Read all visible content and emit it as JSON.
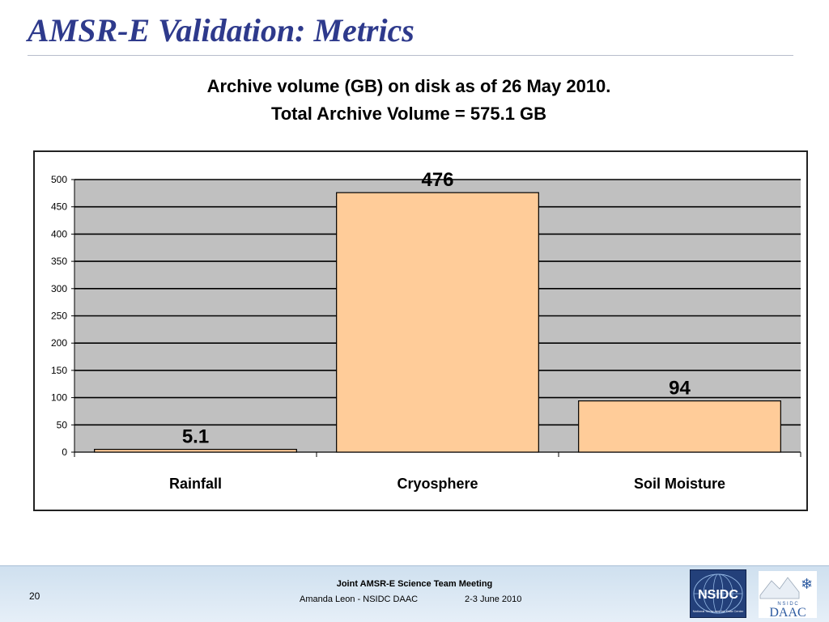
{
  "slide": {
    "title": "AMSR-E Validation: Metrics",
    "subtitle_line1": "Archive volume (GB) on disk as of 26 May 2010.",
    "subtitle_line2": "Total Archive Volume = 575.1 GB"
  },
  "chart_data": {
    "type": "bar",
    "title": "",
    "xlabel": "",
    "ylabel": "",
    "categories": [
      "Rainfall",
      "Cryosphere",
      "Soil Moisture"
    ],
    "values": [
      5.1,
      476,
      94
    ],
    "data_labels": [
      "5.1",
      "476",
      "94"
    ],
    "ylim": [
      0,
      500
    ],
    "yticks": [
      0,
      50,
      100,
      150,
      200,
      250,
      300,
      350,
      400,
      450,
      500
    ],
    "grid": true,
    "legend": "none",
    "colors": {
      "bar_fill": "#ffcc99",
      "bar_stroke": "#000000",
      "plot_bg": "#c0c0c0",
      "gridline": "#000000"
    }
  },
  "footer": {
    "page_number": "20",
    "meeting": "Joint AMSR-E Science Team Meeting",
    "presenter": "Amanda Leon - NSIDC DAAC",
    "date": "2-3 June 2010",
    "nsidc_logo_text": "NSIDC",
    "nsidc_logo_subtext": "National Snow and Ice Data Center",
    "daac_logo_text": "DAAC",
    "daac_logo_subtext": "N S I D C"
  },
  "colors": {
    "title": "#2e3a8c",
    "footer_bg": "#dce8f4",
    "nsidc_logo_bg": "#23407a"
  }
}
